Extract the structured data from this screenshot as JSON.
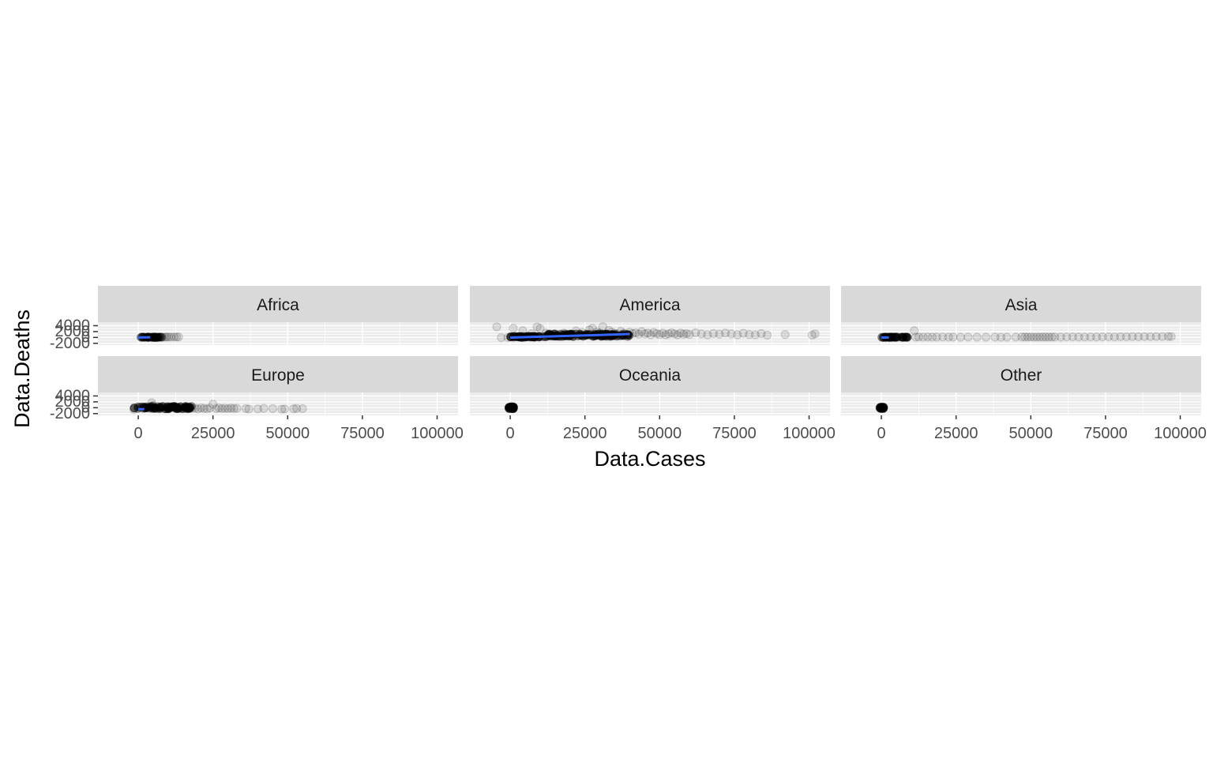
{
  "chart_data": {
    "type": "scatter",
    "layout": "facet_wrap",
    "xlabel": "Data.Cases",
    "ylabel": "Data.Deaths",
    "xlim": [
      -13500,
      107000
    ],
    "ylim": [
      -2600,
      5200
    ],
    "x_ticks": [
      0,
      25000,
      50000,
      75000,
      100000
    ],
    "x_tick_labels": [
      "0",
      "25000",
      "50000",
      "75000",
      "100000"
    ],
    "y_ticks": [
      -2000,
      0,
      2000,
      4000
    ],
    "y_tick_labels": [
      "-2000",
      "0",
      "2000",
      "4000"
    ],
    "grid": true,
    "point_color": "#000000",
    "point_alpha": 0.1,
    "smooth_color": "#3366FF",
    "panel_background": "#EBEBEB",
    "strip_background": "#D9D9D9",
    "facets": [
      {
        "label": "Africa",
        "dense_range": [
          [
            0,
            8000,
            0,
            150
          ]
        ],
        "points": [
          [
            9000,
            120
          ],
          [
            9500,
            160
          ],
          [
            10200,
            140
          ],
          [
            11000,
            130
          ],
          [
            12000,
            180
          ],
          [
            12800,
            140
          ],
          [
            13500,
            150
          ],
          [
            7500,
            90
          ],
          [
            8200,
            110
          ]
        ],
        "smooth": [
          [
            0,
            -20
          ],
          [
            4000,
            60
          ]
        ]
      },
      {
        "label": "America",
        "dense_range": [
          [
            0,
            12000,
            0,
            400
          ],
          [
            12000,
            40000,
            300,
            1200
          ]
        ],
        "points": [
          [
            -3000,
            -40
          ],
          [
            -800,
            0
          ],
          [
            -4500,
            3600
          ],
          [
            1000,
            3100
          ],
          [
            2800,
            200
          ],
          [
            4200,
            2300
          ],
          [
            4500,
            500
          ],
          [
            7200,
            1300
          ],
          [
            9000,
            3600
          ],
          [
            10000,
            3000
          ],
          [
            12000,
            1500
          ],
          [
            14000,
            400
          ],
          [
            15000,
            1200
          ],
          [
            16000,
            900
          ],
          [
            18000,
            1500
          ],
          [
            20000,
            1200
          ],
          [
            22000,
            2200
          ],
          [
            24000,
            1700
          ],
          [
            26000,
            1000
          ],
          [
            26500,
            2600
          ],
          [
            27500,
            3100
          ],
          [
            29000,
            1900
          ],
          [
            30000,
            1500
          ],
          [
            31000,
            3700
          ],
          [
            32000,
            1000
          ],
          [
            33000,
            2400
          ],
          [
            34000,
            1800
          ],
          [
            35000,
            1400
          ],
          [
            36000,
            1200
          ],
          [
            37000,
            2100
          ],
          [
            38000,
            1500
          ],
          [
            39000,
            900
          ],
          [
            40000,
            1800
          ],
          [
            41000,
            1300
          ],
          [
            42000,
            1600
          ],
          [
            43000,
            1100
          ],
          [
            44000,
            2000
          ],
          [
            45000,
            1200
          ],
          [
            46000,
            1500
          ],
          [
            47000,
            900
          ],
          [
            48000,
            1700
          ],
          [
            49000,
            1300
          ],
          [
            50000,
            1000
          ],
          [
            51000,
            1500
          ],
          [
            52000,
            900
          ],
          [
            53000,
            1200
          ],
          [
            54000,
            1600
          ],
          [
            55000,
            1200
          ],
          [
            56000,
            900
          ],
          [
            57000,
            1500
          ],
          [
            58000,
            1100
          ],
          [
            59000,
            1300
          ],
          [
            60000,
            1000
          ],
          [
            62000,
            1600
          ],
          [
            64000,
            1200
          ],
          [
            66000,
            900
          ],
          [
            68000,
            1300
          ],
          [
            70000,
            1100
          ],
          [
            72000,
            1500
          ],
          [
            74000,
            1200
          ],
          [
            76000,
            900
          ],
          [
            78000,
            1400
          ],
          [
            80000,
            1000
          ],
          [
            82000,
            900
          ],
          [
            84000,
            1300
          ],
          [
            86000,
            800
          ],
          [
            92000,
            1000
          ],
          [
            101000,
            800
          ],
          [
            102000,
            1200
          ]
        ],
        "smooth": [
          [
            0,
            -50
          ],
          [
            40000,
            1150
          ]
        ]
      },
      {
        "label": "Asia",
        "dense_range": [
          [
            0,
            9000,
            0,
            150
          ]
        ],
        "points": [
          [
            11000,
            2300
          ],
          [
            11500,
            100
          ],
          [
            12500,
            150
          ],
          [
            14000,
            100
          ],
          [
            15500,
            150
          ],
          [
            17000,
            100
          ],
          [
            18500,
            120
          ],
          [
            20500,
            140
          ],
          [
            22500,
            100
          ],
          [
            24000,
            130
          ],
          [
            26500,
            90
          ],
          [
            29000,
            140
          ],
          [
            32000,
            100
          ],
          [
            35000,
            80
          ],
          [
            38000,
            120
          ],
          [
            40000,
            70
          ],
          [
            42000,
            90
          ],
          [
            45000,
            110
          ],
          [
            47000,
            130
          ],
          [
            48000,
            160
          ],
          [
            49000,
            120
          ],
          [
            50000,
            150
          ],
          [
            51000,
            100
          ],
          [
            52000,
            140
          ],
          [
            53000,
            130
          ],
          [
            54000,
            120
          ],
          [
            55000,
            150
          ],
          [
            56000,
            110
          ],
          [
            57000,
            130
          ],
          [
            58000,
            160
          ],
          [
            60000,
            120
          ],
          [
            62000,
            150
          ],
          [
            64000,
            180
          ],
          [
            66000,
            160
          ],
          [
            68000,
            140
          ],
          [
            70000,
            170
          ],
          [
            72000,
            150
          ],
          [
            74000,
            190
          ],
          [
            76000,
            210
          ],
          [
            78000,
            170
          ],
          [
            80000,
            230
          ],
          [
            82000,
            200
          ],
          [
            84000,
            250
          ],
          [
            86000,
            220
          ],
          [
            88000,
            260
          ],
          [
            90000,
            240
          ],
          [
            92000,
            290
          ],
          [
            94000,
            270
          ],
          [
            96000,
            310
          ],
          [
            97000,
            300
          ]
        ],
        "smooth": [
          [
            0,
            -30
          ],
          [
            2500,
            -10
          ]
        ]
      },
      {
        "label": "Europe",
        "dense_range": [
          [
            -1500,
            18000,
            -400,
            500
          ]
        ],
        "points": [
          [
            -1500,
            -600
          ],
          [
            4500,
            1700
          ],
          [
            5000,
            800
          ],
          [
            18000,
            -200
          ],
          [
            19000,
            -150
          ],
          [
            20000,
            -400
          ],
          [
            21000,
            -100
          ],
          [
            22000,
            -250
          ],
          [
            23000,
            -350
          ],
          [
            24000,
            -100
          ],
          [
            25000,
            1200
          ],
          [
            26000,
            -300
          ],
          [
            27000,
            -100
          ],
          [
            28000,
            -300
          ],
          [
            29000,
            -200
          ],
          [
            30000,
            -300
          ],
          [
            31000,
            -150
          ],
          [
            32000,
            -250
          ],
          [
            33000,
            -200
          ],
          [
            36000,
            -300
          ],
          [
            37000,
            -450
          ],
          [
            40000,
            -400
          ],
          [
            42000,
            -250
          ],
          [
            45000,
            -300
          ],
          [
            48000,
            -500
          ],
          [
            49000,
            -400
          ],
          [
            52000,
            -350
          ],
          [
            53000,
            -250
          ],
          [
            55000,
            -300
          ]
        ],
        "smooth": [
          [
            0,
            -500
          ],
          [
            2000,
            -490
          ]
        ]
      },
      {
        "label": "Oceania",
        "dense_range": [
          [
            -600,
            1200,
            -400,
            400
          ]
        ],
        "points": [
          [
            0,
            0
          ],
          [
            600,
            200
          ],
          [
            1000,
            -100
          ]
        ],
        "smooth": []
      },
      {
        "label": "Other",
        "dense_range": [
          [
            -500,
            800,
            -300,
            300
          ]
        ],
        "points": [
          [
            0,
            0
          ],
          [
            300,
            100
          ]
        ],
        "smooth": []
      }
    ]
  }
}
